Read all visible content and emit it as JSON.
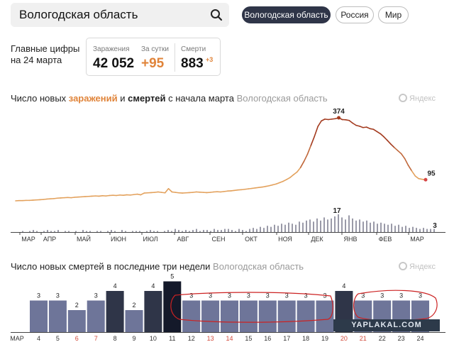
{
  "search": {
    "value": "Вологодская область"
  },
  "region_tabs": [
    {
      "label": "Вологодская область",
      "active": true
    },
    {
      "label": "Россия",
      "active": false
    },
    {
      "label": "Мир",
      "active": false
    }
  ],
  "main_numbers": {
    "label": "Главные цифры на 24 марта",
    "infections_caption": "Заражения",
    "infections_value": "42 052",
    "daily_caption": "За сутки",
    "daily_value": "+95",
    "deaths_caption": "Смерти",
    "deaths_value": "883",
    "deaths_delta": "+3"
  },
  "chart1": {
    "title_prefix": "Число новых ",
    "title_infections": "заражений",
    "title_and": " и ",
    "title_deaths": "смертей",
    "title_suffix": " с начала марта",
    "region": "Вологодская область",
    "brand": "Яндекс"
  },
  "chart2": {
    "title": "Число новых смертей в последние три недели",
    "region": "Вологодская область",
    "brand": "Яндекс"
  },
  "watermark": "YAPLAKAL.COM",
  "colors": {
    "accent_orange": "#e0843a",
    "line_dark": "#a33a1e",
    "bar": "#6e7599",
    "bar_highlight": "#2f3548",
    "bar_max": "#14192a",
    "marker_red": "#d64545"
  },
  "chart_data": [
    {
      "type": "line",
      "title": "Число новых заражений и смертей с начала марта",
      "x_ticks": [
        "МАР",
        "АПР",
        "МАЙ",
        "ИЮН",
        "ИЮЛ",
        "АВГ",
        "СЕН",
        "ОКТ",
        "НОЯ",
        "ДЕК",
        "ЯНВ",
        "ФЕВ",
        "МАР"
      ],
      "infections": [
        0,
        1,
        1,
        2,
        2,
        3,
        4,
        5,
        6,
        8,
        9,
        10,
        12,
        13,
        14,
        15,
        14,
        16,
        17,
        18,
        19,
        20,
        21,
        22,
        21,
        23,
        22,
        24,
        25,
        24,
        26,
        25,
        27,
        26,
        28,
        30,
        27,
        35,
        36,
        37,
        38,
        40,
        38,
        36,
        55,
        40,
        38,
        36,
        35,
        36,
        37,
        38,
        40,
        39,
        38,
        37,
        38,
        40,
        41,
        40,
        42,
        44,
        45,
        47,
        49,
        50,
        52,
        54,
        56,
        58,
        60,
        62,
        65,
        68,
        72,
        76,
        82,
        88,
        96,
        105,
        118,
        130,
        150,
        178,
        210,
        250,
        290,
        335,
        360,
        368,
        366,
        368,
        370,
        374,
        366,
        365,
        362,
        350,
        340,
        336,
        330,
        332,
        325,
        322,
        312,
        302,
        288,
        272,
        255,
        240,
        226,
        212,
        190,
        160,
        135,
        112,
        100,
        97,
        95
      ],
      "deaths_daily": [
        0,
        0,
        1,
        0,
        1,
        2,
        1,
        0,
        1,
        2,
        1,
        1,
        2,
        0,
        1,
        1,
        0,
        1,
        0,
        2,
        1,
        1,
        0,
        1,
        1,
        0,
        1,
        2,
        1,
        0,
        2,
        1,
        0,
        1,
        1,
        1,
        0,
        1,
        2,
        1,
        1,
        0,
        1,
        2,
        1,
        3,
        2,
        1,
        2,
        1,
        2,
        3,
        1,
        2,
        2,
        1,
        3,
        2,
        2,
        3,
        3,
        2,
        1,
        3,
        2,
        1,
        3,
        4,
        3,
        5,
        4,
        6,
        5,
        7,
        6,
        8,
        7,
        9,
        8,
        7,
        10,
        9,
        11,
        12,
        10,
        13,
        11,
        14,
        12,
        13,
        15,
        17,
        14,
        12,
        16,
        13,
        11,
        12,
        10,
        11,
        9,
        10,
        8,
        9,
        8,
        7,
        8,
        6,
        7,
        5,
        6,
        4,
        5,
        4,
        3,
        4,
        3,
        3,
        3
      ],
      "peak_label": "374",
      "last_label": "95",
      "deaths_peak_label": "17",
      "deaths_last_label": "3"
    },
    {
      "type": "bar",
      "title": "Число новых смертей в последние три недели",
      "month_label": "МАР",
      "categories": [
        "4",
        "5",
        "6",
        "7",
        "8",
        "9",
        "10",
        "11",
        "12",
        "13",
        "14",
        "15",
        "16",
        "17",
        "18",
        "19",
        "20",
        "21",
        "22",
        "23",
        "24"
      ],
      "values": [
        3,
        3,
        2,
        3,
        4,
        2,
        4,
        5,
        3,
        3,
        3,
        3,
        3,
        3,
        3,
        3,
        4,
        3,
        3,
        3,
        3
      ],
      "weekend": [
        "6",
        "7",
        "13",
        "14",
        "20",
        "21"
      ]
    }
  ]
}
